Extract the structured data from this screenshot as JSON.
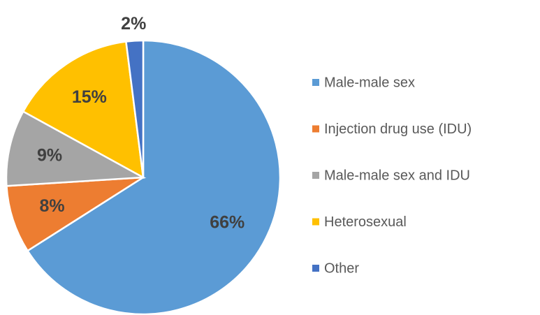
{
  "chart_data": {
    "type": "pie",
    "categories": [
      "Male-male sex",
      "Injection drug use (IDU)",
      "Male-male sex and IDU",
      "Heterosexual",
      "Other"
    ],
    "values": [
      66,
      8,
      9,
      15,
      2
    ],
    "value_labels": [
      "66%",
      "8%",
      "9%",
      "15%",
      "2%"
    ],
    "colors": [
      "#5b9bd5",
      "#ed7d31",
      "#a5a5a5",
      "#ffc000",
      "#4472c4"
    ],
    "legend": "right"
  }
}
